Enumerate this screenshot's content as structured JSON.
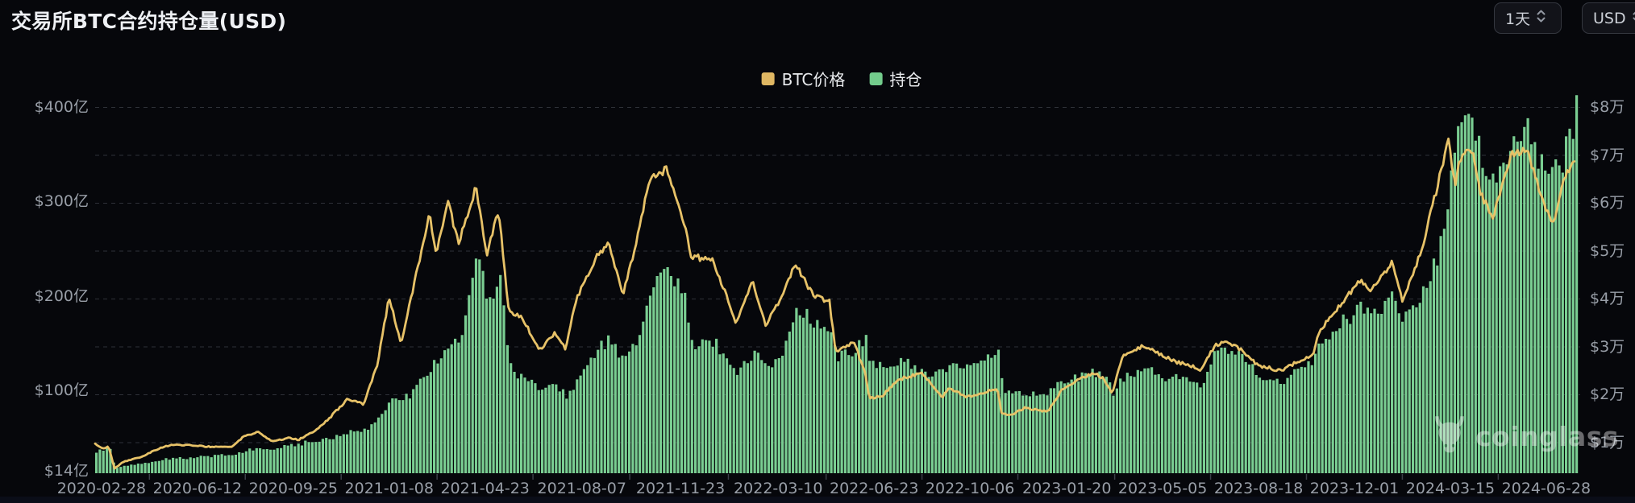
{
  "header": {
    "title": "交易所BTC合约持仓量(USD)",
    "interval_button": "1天",
    "currency_button": "USD"
  },
  "legend": [
    {
      "label": "BTC价格",
      "color": "#dfb763"
    },
    {
      "label": "持仓",
      "color": "#73cc8c"
    }
  ],
  "watermark": {
    "brand": "coinglass"
  },
  "colors": {
    "background": "#06070b",
    "bar_green": "#7ace92",
    "line_yellow": "#e7c268",
    "grid": "#2e3138",
    "axis_text": "#989ea7",
    "title_text": "#eef0f4",
    "button_border": "#34373f",
    "button_bg": "#121319",
    "button_text": "#ccd0d7",
    "strip": "#0a0d18"
  },
  "axes": {
    "left_labels": [
      {
        "text": "$400亿",
        "value": 400
      },
      {
        "text": "$300亿",
        "value": 300
      },
      {
        "text": "$200亿",
        "value": 200
      },
      {
        "text": "$100亿",
        "value": 100
      },
      {
        "text": "$14亿",
        "value": 14
      }
    ],
    "right_labels": [
      {
        "text": "$8万",
        "value": 8
      },
      {
        "text": "$7万",
        "value": 7
      },
      {
        "text": "$6万",
        "value": 6
      },
      {
        "text": "$5万",
        "value": 5
      },
      {
        "text": "$4万",
        "value": 4
      },
      {
        "text": "$3万",
        "value": 3
      },
      {
        "text": "$2万",
        "value": 2
      },
      {
        "text": "$1万",
        "value": 1
      }
    ],
    "x_labels": [
      "2020-02-28",
      "2020-06-12",
      "2020-09-25",
      "2021-01-08",
      "2021-04-23",
      "2021-08-07",
      "2021-11-23",
      "2022-03-10",
      "2022-06-23",
      "2022-10-06",
      "2023-01-20",
      "2023-05-05",
      "2023-08-18",
      "2023-12-01",
      "2024-03-15",
      "2024-06-28"
    ]
  },
  "chart_data": {
    "type": "mixed",
    "title": "交易所BTC合约持仓量(USD)",
    "x_axis": {
      "type": "time",
      "range": [
        "2020-02-21",
        "2024-07-29"
      ],
      "grid": "horizontal-dashed"
    },
    "y_axis_left": {
      "series": "持仓",
      "unit": "亿 USD",
      "ticks": [
        14,
        100,
        200,
        300,
        400
      ],
      "min": 14,
      "max": 405
    },
    "y_axis_right": {
      "series": "BTC价格",
      "unit": "万 USD",
      "ticks": [
        1,
        2,
        3,
        4,
        5,
        6,
        7,
        8
      ],
      "min": 0.4,
      "max": 8
    },
    "legend_position": "top-center",
    "series": [
      {
        "name": "BTC价格",
        "type": "line",
        "axis": "right",
        "unit": "万美元",
        "color": "#e7c268"
      },
      {
        "name": "持仓",
        "type": "bar",
        "axis": "left",
        "unit": "亿美元",
        "color": "#7ace92"
      }
    ],
    "columns": [
      "date",
      "btc_price_wan_usd",
      "open_interest_yi_usd"
    ],
    "samples": [
      [
        "2020-02-21",
        0.97,
        34
      ],
      [
        "2020-02-28",
        0.88,
        36
      ],
      [
        "2020-03-07",
        0.91,
        38
      ],
      [
        "2020-03-13",
        0.46,
        17
      ],
      [
        "2020-03-23",
        0.6,
        20
      ],
      [
        "2020-04-10",
        0.69,
        22
      ],
      [
        "2020-05-01",
        0.88,
        26
      ],
      [
        "2020-05-14",
        0.95,
        28
      ],
      [
        "2020-06-01",
        0.95,
        29
      ],
      [
        "2020-06-27",
        0.91,
        30
      ],
      [
        "2020-07-20",
        0.92,
        32
      ],
      [
        "2020-08-01",
        1.12,
        36
      ],
      [
        "2020-08-17",
        1.22,
        40
      ],
      [
        "2020-09-03",
        1.02,
        38
      ],
      [
        "2020-09-19",
        1.1,
        43
      ],
      [
        "2020-10-01",
        1.06,
        44
      ],
      [
        "2020-10-21",
        1.28,
        47
      ],
      [
        "2020-11-06",
        1.56,
        49
      ],
      [
        "2020-11-24",
        1.92,
        58
      ],
      [
        "2020-12-11",
        1.8,
        60
      ],
      [
        "2020-12-26",
        2.64,
        72
      ],
      [
        "2021-01-08",
        4.05,
        92
      ],
      [
        "2021-01-21",
        3.05,
        86
      ],
      [
        "2021-02-08",
        4.65,
        110
      ],
      [
        "2021-02-21",
        5.75,
        128
      ],
      [
        "2021-03-01",
        4.95,
        133
      ],
      [
        "2021-03-13",
        6.05,
        152
      ],
      [
        "2021-03-25",
        5.15,
        158
      ],
      [
        "2021-04-13",
        6.35,
        244
      ],
      [
        "2021-04-25",
        4.95,
        190
      ],
      [
        "2021-05-08",
        5.85,
        215
      ],
      [
        "2021-05-19",
        3.7,
        122
      ],
      [
        "2021-06-01",
        3.65,
        116
      ],
      [
        "2021-06-22",
        2.95,
        100
      ],
      [
        "2021-07-09",
        3.3,
        103
      ],
      [
        "2021-07-20",
        2.96,
        97
      ],
      [
        "2021-08-01",
        4.0,
        110
      ],
      [
        "2021-08-22",
        4.85,
        139
      ],
      [
        "2021-09-06",
        5.15,
        152
      ],
      [
        "2021-09-21",
        4.1,
        126
      ],
      [
        "2021-10-06",
        5.2,
        155
      ],
      [
        "2021-10-20",
        6.55,
        210
      ],
      [
        "2021-11-09",
        6.7,
        230
      ],
      [
        "2021-11-28",
        5.55,
        195
      ],
      [
        "2021-12-04",
        4.9,
        150
      ],
      [
        "2021-12-28",
        4.8,
        155
      ],
      [
        "2022-01-10",
        4.2,
        135
      ],
      [
        "2022-01-22",
        3.5,
        116
      ],
      [
        "2022-02-10",
        4.35,
        140
      ],
      [
        "2022-02-24",
        3.45,
        126
      ],
      [
        "2022-03-10",
        3.9,
        130
      ],
      [
        "2022-03-29",
        4.72,
        186
      ],
      [
        "2022-04-18",
        4.05,
        170
      ],
      [
        "2022-05-05",
        3.95,
        155
      ],
      [
        "2022-05-12",
        2.9,
        130
      ],
      [
        "2022-06-01",
        3.1,
        143
      ],
      [
        "2022-06-13",
        2.45,
        150
      ],
      [
        "2022-06-18",
        1.93,
        126
      ],
      [
        "2022-07-01",
        1.96,
        123
      ],
      [
        "2022-07-20",
        2.32,
        128
      ],
      [
        "2022-08-14",
        2.45,
        124
      ],
      [
        "2022-09-06",
        1.95,
        120
      ],
      [
        "2022-09-13",
        2.15,
        127
      ],
      [
        "2022-10-01",
        1.95,
        128
      ],
      [
        "2022-10-25",
        2.07,
        136
      ],
      [
        "2022-11-05",
        2.12,
        140
      ],
      [
        "2022-11-10",
        1.59,
        98
      ],
      [
        "2022-11-21",
        1.58,
        97
      ],
      [
        "2022-12-05",
        1.72,
        100
      ],
      [
        "2022-12-30",
        1.65,
        97
      ],
      [
        "2023-01-14",
        2.08,
        108
      ],
      [
        "2023-02-01",
        2.32,
        116
      ],
      [
        "2023-02-20",
        2.45,
        121
      ],
      [
        "2023-03-01",
        2.33,
        120
      ],
      [
        "2023-03-11",
        2.03,
        97
      ],
      [
        "2023-03-22",
        2.82,
        114
      ],
      [
        "2023-04-14",
        3.03,
        119
      ],
      [
        "2023-05-01",
        2.85,
        115
      ],
      [
        "2023-05-20",
        2.68,
        112
      ],
      [
        "2023-06-10",
        2.58,
        109
      ],
      [
        "2023-06-15",
        2.52,
        107
      ],
      [
        "2023-07-01",
        3.02,
        139
      ],
      [
        "2023-07-14",
        3.1,
        141
      ],
      [
        "2023-08-01",
        2.92,
        140
      ],
      [
        "2023-08-17",
        2.62,
        116
      ],
      [
        "2023-09-11",
        2.5,
        107
      ],
      [
        "2023-10-01",
        2.7,
        123
      ],
      [
        "2023-10-16",
        2.8,
        128
      ],
      [
        "2023-10-24",
        3.35,
        148
      ],
      [
        "2023-11-09",
        3.72,
        165
      ],
      [
        "2023-12-08",
        4.4,
        190
      ],
      [
        "2023-12-18",
        4.2,
        183
      ],
      [
        "2024-01-02",
        4.5,
        190
      ],
      [
        "2024-01-11",
        4.75,
        195
      ],
      [
        "2024-01-23",
        3.95,
        180
      ],
      [
        "2024-02-12",
        4.98,
        200
      ],
      [
        "2024-02-28",
        6.2,
        240
      ],
      [
        "2024-03-13",
        7.3,
        310
      ],
      [
        "2024-03-20",
        6.35,
        370
      ],
      [
        "2024-03-27",
        7.0,
        388
      ],
      [
        "2024-04-08",
        7.1,
        380
      ],
      [
        "2024-04-17",
        6.2,
        340
      ],
      [
        "2024-05-01",
        5.7,
        310
      ],
      [
        "2024-05-21",
        7.05,
        368
      ],
      [
        "2024-06-07",
        7.1,
        380
      ],
      [
        "2024-06-24",
        6.1,
        336
      ],
      [
        "2024-07-05",
        5.55,
        330
      ],
      [
        "2024-07-17",
        6.5,
        358
      ],
      [
        "2024-07-24",
        6.7,
        372
      ],
      [
        "2024-07-29",
        6.95,
        405
      ]
    ]
  }
}
